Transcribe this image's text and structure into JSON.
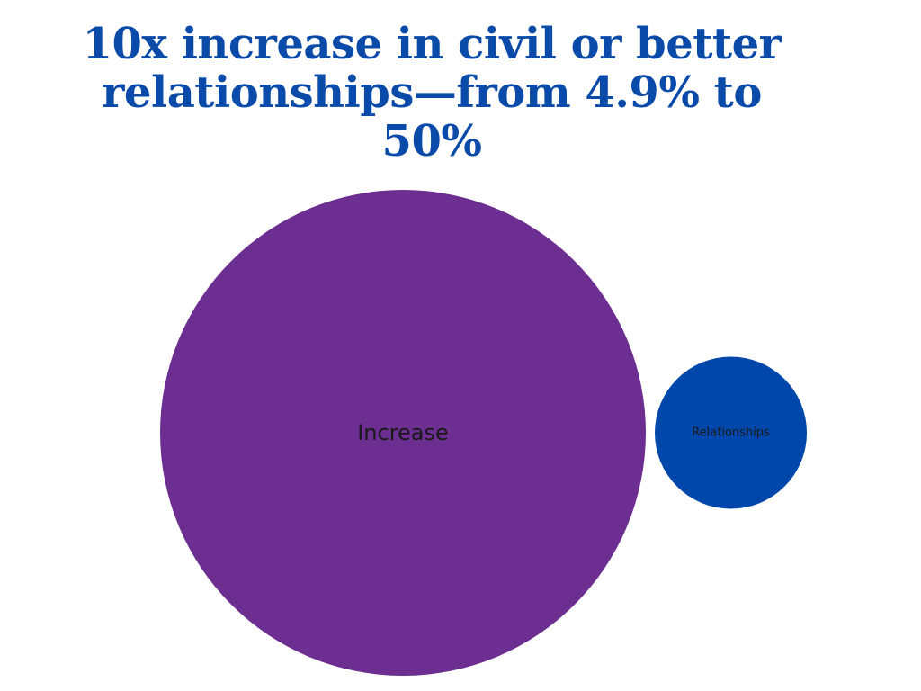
{
  "chart_data": {
    "type": "bubble",
    "title": "10x increase in civil or better relationships—from 4.9% to 50%",
    "bubbles": [
      {
        "label": "Increase",
        "value": 50,
        "color": "#6c2e91"
      },
      {
        "label": "Relationships",
        "value": 4.9,
        "color": "#0047ab"
      }
    ]
  },
  "colors": {
    "title": "#0a4aa8",
    "background": "#ffffff"
  }
}
